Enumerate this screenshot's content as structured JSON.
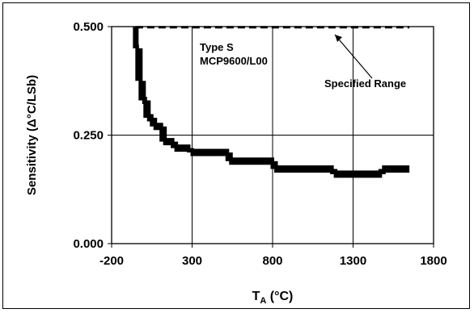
{
  "chart_data": {
    "type": "line",
    "xlabel_main": "T",
    "xlabel_sub": "A",
    "xlabel_rest": " (°C)",
    "ylabel": "Sensitivity (Δ°C/LSb)",
    "xlim": [
      -200,
      1800
    ],
    "ylim": [
      0,
      0.5
    ],
    "x_ticks": [
      -200,
      300,
      800,
      1300,
      1800
    ],
    "x_tick_labels": [
      "-200",
      "300",
      "800",
      "1300",
      "1800"
    ],
    "y_ticks": [
      0,
      0.25,
      0.5
    ],
    "y_tick_labels": [
      "0.000",
      "0.250",
      "0.500"
    ],
    "grid": true,
    "annotations": {
      "type_label": "Type S",
      "part_label": "MCP9600/L00",
      "range_label": "Specified Range"
    },
    "specified_range": {
      "x": [
        -50,
        1650
      ],
      "y": 0.495
    },
    "series": [
      {
        "steps": [
          {
            "x0": -50,
            "x1": -30,
            "y": 0.45
          },
          {
            "x0": -30,
            "x1": -10,
            "y": 0.375
          },
          {
            "x0": -10,
            "x1": 20,
            "y": 0.33
          },
          {
            "x0": 20,
            "x1": 60,
            "y": 0.29
          },
          {
            "x0": 60,
            "x1": 120,
            "y": 0.27
          },
          {
            "x0": 120,
            "x1": 190,
            "y": 0.235
          },
          {
            "x0": 190,
            "x1": 290,
            "y": 0.22
          },
          {
            "x0": 290,
            "x1": 530,
            "y": 0.21
          },
          {
            "x0": 530,
            "x1": 810,
            "y": 0.19
          },
          {
            "x0": 810,
            "x1": 1180,
            "y": 0.172
          },
          {
            "x0": 1180,
            "x1": 1480,
            "y": 0.16
          },
          {
            "x0": 1480,
            "x1": 1650,
            "y": 0.172
          }
        ]
      }
    ]
  }
}
